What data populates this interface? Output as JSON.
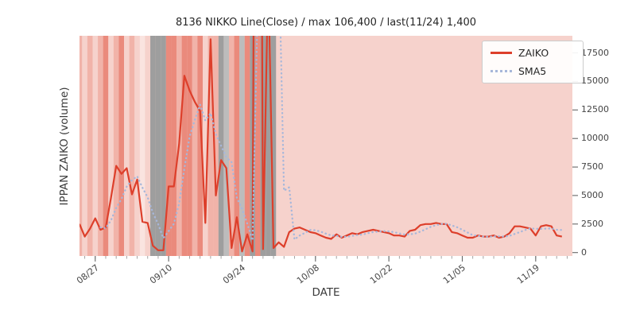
{
  "chart_data": {
    "type": "line",
    "title": "8136 NIKKO Line(Close) / max 106,400 / last(11/24) 1,400",
    "xlabel": "DATE",
    "ylabel": "IPPAN ZAIKO (volume)",
    "ylim": [
      -300,
      19000
    ],
    "yticks": [
      0,
      2500,
      5000,
      7500,
      10000,
      12500,
      15000,
      17500
    ],
    "xtick_labels": [
      "08/27",
      "09/10",
      "09/24",
      "10/08",
      "10/22",
      "11/05",
      "11/19"
    ],
    "xtick_indices": [
      3,
      17,
      31,
      45,
      59,
      73,
      87
    ],
    "legend_position": "upper right",
    "grid": false,
    "stats": {
      "max": 106400,
      "last_date": "11/24",
      "last_value": 1400
    },
    "x": [
      "08/24",
      "08/25",
      "08/26",
      "08/27",
      "08/28",
      "08/29",
      "08/30",
      "08/31",
      "09/01",
      "09/02",
      "09/03",
      "09/04",
      "09/05",
      "09/06",
      "09/07",
      "09/08",
      "09/09",
      "09/10",
      "09/11",
      "09/12",
      "09/13",
      "09/14",
      "09/15",
      "09/16",
      "09/17",
      "09/18",
      "09/19",
      "09/20",
      "09/21",
      "09/22",
      "09/23",
      "09/24",
      "09/25",
      "09/26",
      "09/27",
      "09/28",
      "09/29",
      "09/30",
      "10/01",
      "10/02",
      "10/03",
      "10/04",
      "10/05",
      "10/06",
      "10/07",
      "10/08",
      "10/09",
      "10/10",
      "10/11",
      "10/12",
      "10/13",
      "10/14",
      "10/15",
      "10/16",
      "10/17",
      "10/18",
      "10/19",
      "10/20",
      "10/21",
      "10/22",
      "10/23",
      "10/24",
      "10/25",
      "10/26",
      "10/27",
      "10/28",
      "10/29",
      "10/30",
      "10/31",
      "11/01",
      "11/02",
      "11/03",
      "11/04",
      "11/05",
      "11/06",
      "11/07",
      "11/08",
      "11/09",
      "11/10",
      "11/11",
      "11/12",
      "11/13",
      "11/14",
      "11/15",
      "11/16",
      "11/17",
      "11/18",
      "11/19",
      "11/20",
      "11/21",
      "11/22",
      "11/23",
      "11/24",
      "11/25",
      "11/26"
    ],
    "series": [
      {
        "name": "ZAIKO",
        "color": "#dd3f2b",
        "style": "solid",
        "values": [
          2500,
          1400,
          2100,
          3000,
          2000,
          2200,
          4800,
          7600,
          6900,
          7400,
          5100,
          6400,
          2700,
          2600,
          600,
          200,
          200,
          5800,
          5800,
          9500,
          15500,
          14200,
          13200,
          12400,
          2600,
          18700,
          5000,
          8100,
          7400,
          400,
          3100,
          100,
          1600,
          100,
          106400,
          300,
          25000,
          400,
          900,
          500,
          1800,
          2100,
          2200,
          2000,
          1800,
          1700,
          1500,
          1300,
          1200,
          1600,
          1300,
          1500,
          1700,
          1600,
          1800,
          1900,
          2000,
          1900,
          1800,
          1700,
          1500,
          1500,
          1400,
          1900,
          2000,
          2400,
          2500,
          2500,
          2600,
          2500,
          2500,
          1800,
          1700,
          1500,
          1300,
          1300,
          1500,
          1400,
          1400,
          1500,
          1300,
          1400,
          1700,
          2300,
          2300,
          2200,
          2100,
          1500,
          2300,
          2400,
          2300,
          1500,
          1400,
          null,
          null
        ]
      },
      {
        "name": "SMA5",
        "color": "#a7b7da",
        "style": "dotted",
        "derived": "5-day moving average of ZAIKO"
      }
    ],
    "background_bands": [
      "p2",
      "p1",
      "p2",
      "p1",
      "p2",
      "p3",
      "p1",
      "p2",
      "p3",
      "p1",
      "p2",
      "p1",
      "p0",
      "p1",
      "g",
      "g",
      "g",
      "p3",
      "p3",
      "p2",
      "p3",
      "p3",
      "p2",
      "p3",
      "p1",
      "p2",
      "p2",
      "g",
      "g2",
      "p2",
      "p3",
      "g2",
      "p3",
      "g",
      "p3",
      "g",
      "g",
      "g",
      "p1",
      "p1",
      "p1",
      "p1",
      "p1",
      "p1",
      "p1",
      "p1",
      "p1",
      "p1",
      "p1",
      "p1",
      "p1",
      "p1",
      "p1",
      "p1",
      "p1",
      "p1",
      "p1",
      "p1",
      "p1",
      "p1",
      "p1",
      "p1",
      "p1",
      "p1",
      "p1",
      "p1",
      "p1",
      "p1",
      "p1",
      "p1",
      "p1",
      "p1",
      "p1",
      "p1",
      "p1",
      "p1",
      "p1",
      "p1",
      "p1",
      "p1",
      "p1",
      "p1",
      "p1",
      "p1",
      "p1",
      "p1",
      "p1",
      "p1",
      "p1",
      "p1",
      "p1",
      "p1",
      "p1",
      "p1",
      "p1"
    ],
    "band_colors": {
      "p0": "#fae4e0",
      "p1": "#f6d2cc",
      "p2": "#f1b3a9",
      "p3": "#ea8a7c",
      "g": "#9e9e9e",
      "g2": "#bcbcbc"
    },
    "tick_color": "#666666"
  }
}
